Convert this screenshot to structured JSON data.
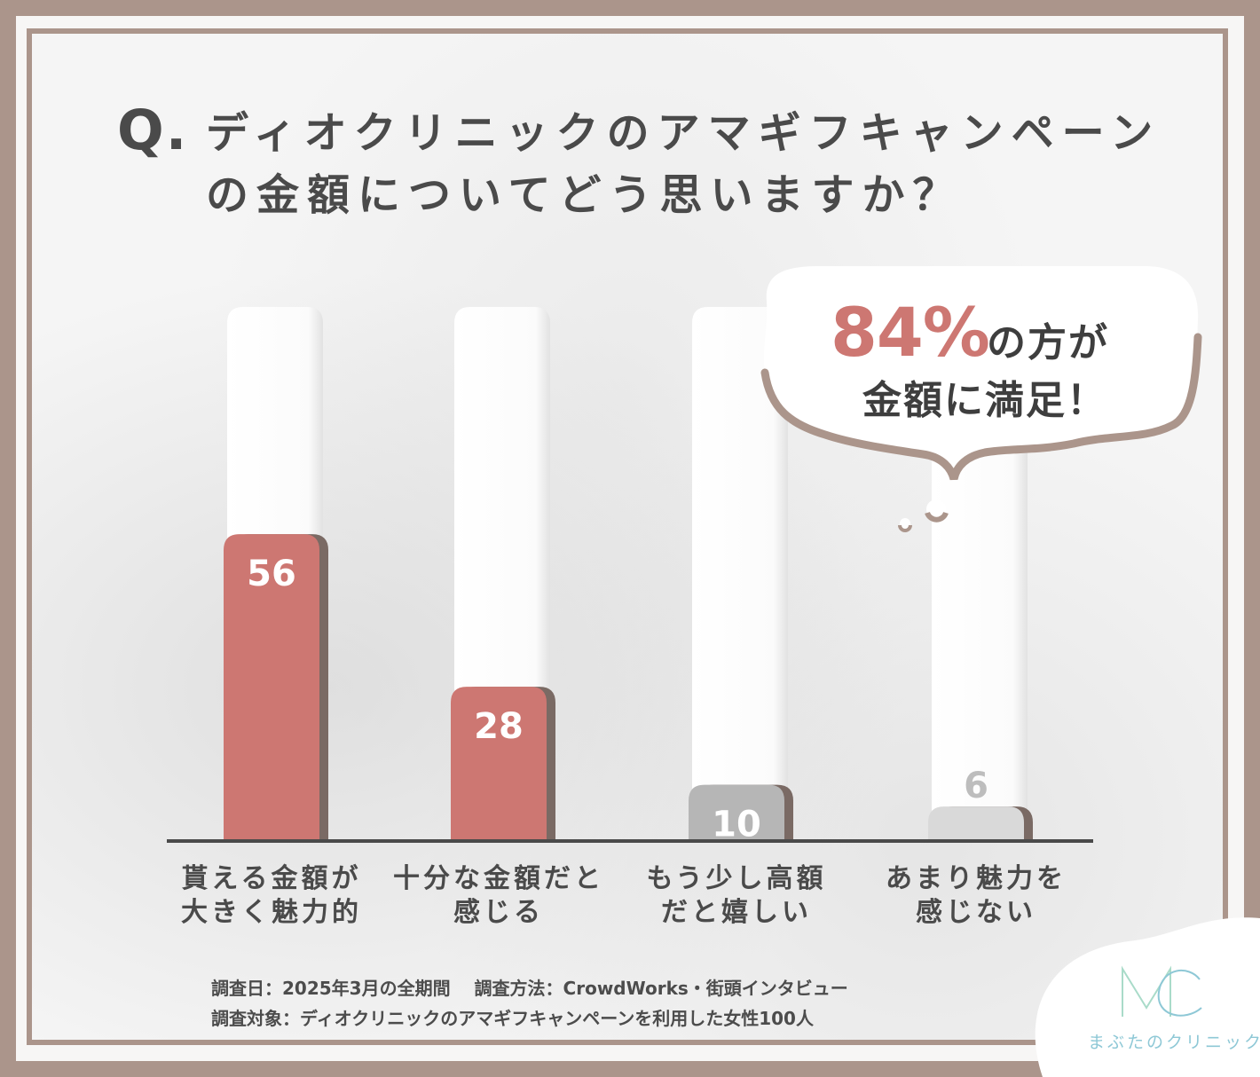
{
  "question": {
    "mark": "Q.",
    "line1": "ディオクリニックのアマギフキャンペーン",
    "line2": "の金額についてどう思いますか？"
  },
  "callout": {
    "percent": "84%",
    "line1": "の方が",
    "line2": "金額に満足！"
  },
  "notes": {
    "line1": "調査日：2025年3月の全期間　 調査方法：CrowdWorks・街頭インタビュー",
    "line2": "調査対象：ディオクリニックのアマギフキャンペーンを利用した女性100人"
  },
  "logo": {
    "mark": "MC",
    "name": "まぶたのクリニック"
  },
  "colors": {
    "frame": "#ab958b",
    "bar_highlight": "#cd7772",
    "bar_mid": "#b6b6b6",
    "bar_low": "#d9d9d9",
    "accent_logo": "#8ec8d6"
  },
  "chart_data": {
    "type": "bar",
    "categories": [
      [
        "貰える金額が",
        "大きく魅力的"
      ],
      [
        "十分な金額だと",
        "感じる"
      ],
      [
        "もう少し高額",
        "だと嬉しい"
      ],
      [
        "あまり魅力を",
        "感じない"
      ]
    ],
    "values": [
      56,
      28,
      10,
      6
    ],
    "value_labels": [
      "56",
      "28",
      "10",
      "6"
    ],
    "ylim": [
      0,
      100
    ],
    "grid": false,
    "legend": "none"
  }
}
